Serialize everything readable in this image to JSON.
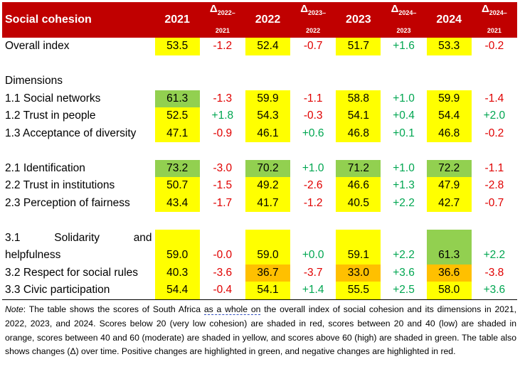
{
  "header": {
    "title": "Social cohesion",
    "years": [
      "2021",
      "2022",
      "2023",
      "2024"
    ],
    "deltas": [
      {
        "symbol": "Δ",
        "sub_top": "2022–",
        "sub_bottom": "2021"
      },
      {
        "symbol": "Δ",
        "sub_top": "2023–",
        "sub_bottom": "2022"
      },
      {
        "symbol": "Δ",
        "sub_top": "2024–",
        "sub_bottom": "2023"
      },
      {
        "symbol": "Δ",
        "sub_top": "2024–",
        "sub_bottom": "2021"
      }
    ]
  },
  "rows": {
    "overall": {
      "label": "Overall index",
      "v": [
        "53.5",
        "52.4",
        "51.7",
        "53.3"
      ],
      "d": [
        "-1.2",
        "-0.7",
        "+1.6",
        "-0.2"
      ]
    },
    "dimensions_label": "Dimensions",
    "r11": {
      "label": "1.1 Social networks",
      "v": [
        "61.3",
        "59.9",
        "58.8",
        "59.9"
      ],
      "d": [
        "-1.3",
        "-1.1",
        "+1.0",
        "-1.4"
      ]
    },
    "r12": {
      "label": "1.2 Trust in people",
      "v": [
        "52.5",
        "54.3",
        "54.1",
        "54.4"
      ],
      "d": [
        "+1.8",
        "-0.3",
        "+0.4",
        "+2.0"
      ]
    },
    "r13": {
      "label": "1.3 Acceptance of diversity",
      "v": [
        "47.1",
        "46.1",
        "46.8",
        "46.8"
      ],
      "d": [
        "-0.9",
        "+0.6",
        "+0.1",
        "-0.2"
      ]
    },
    "r21": {
      "label": "2.1 Identification",
      "v": [
        "73.2",
        "70.2",
        "71.2",
        "72.2"
      ],
      "d": [
        "-3.0",
        "+1.0",
        "+1.0",
        "-1.1"
      ]
    },
    "r22": {
      "label": "2.2 Trust in institutions",
      "v": [
        "50.7",
        "49.2",
        "46.6",
        "47.9"
      ],
      "d": [
        "-1.5",
        "-2.6",
        "+1.3",
        "-2.8"
      ]
    },
    "r23": {
      "label": "2.3 Perception of fairness",
      "v": [
        "43.4",
        "41.7",
        "40.5",
        "42.7"
      ],
      "d": [
        "-1.7",
        "-1.2",
        "+2.2",
        "-0.7"
      ]
    },
    "r31": {
      "label_line1_a": "3.1",
      "label_line1_b": "Solidarity",
      "label_line1_c": "and",
      "label_line2": "helpfulness",
      "v": [
        "59.0",
        "59.0",
        "59.1",
        "61.3"
      ],
      "d": [
        "-0.0",
        "+0.0",
        "+2.2",
        "+2.2"
      ]
    },
    "r32": {
      "label": "3.2 Respect for social rules",
      "v": [
        "40.3",
        "36.7",
        "33.0",
        "36.6"
      ],
      "d": [
        "-3.6",
        "-3.7",
        "+3.6",
        "-3.8"
      ]
    },
    "r33": {
      "label": "3.3 Civic participation",
      "v": [
        "54.4",
        "54.1",
        "55.5",
        "58.0"
      ],
      "d": [
        "-0.4",
        "+1.4",
        "+2.5",
        "+3.6"
      ]
    }
  },
  "note": {
    "lead": "Note",
    "part1": ": The table shows the scores of South Africa ",
    "dashed": "as a whole on",
    "part2": " the overall index of social cohesion and its dimensions in 2021, 2022, 2023, and 2024. Scores below 20 (very low cohesion) are shaded in red, scores between 20 and 40 (low) are shaded in orange, scores between 40 and 60 (moderate) are shaded in yellow, and scores above 60 (high) are shaded in green. The table also shows changes (Δ) over time. Positive changes are highlighted in green, and negative changes are highlighted in red."
  },
  "colors": {
    "header_bg": "#c00000",
    "moderate_yellow": "#ffff00",
    "high_green": "#92d050",
    "low_orange": "#ffc000",
    "positive_text": "#00a651",
    "negative_text": "#e00000"
  }
}
